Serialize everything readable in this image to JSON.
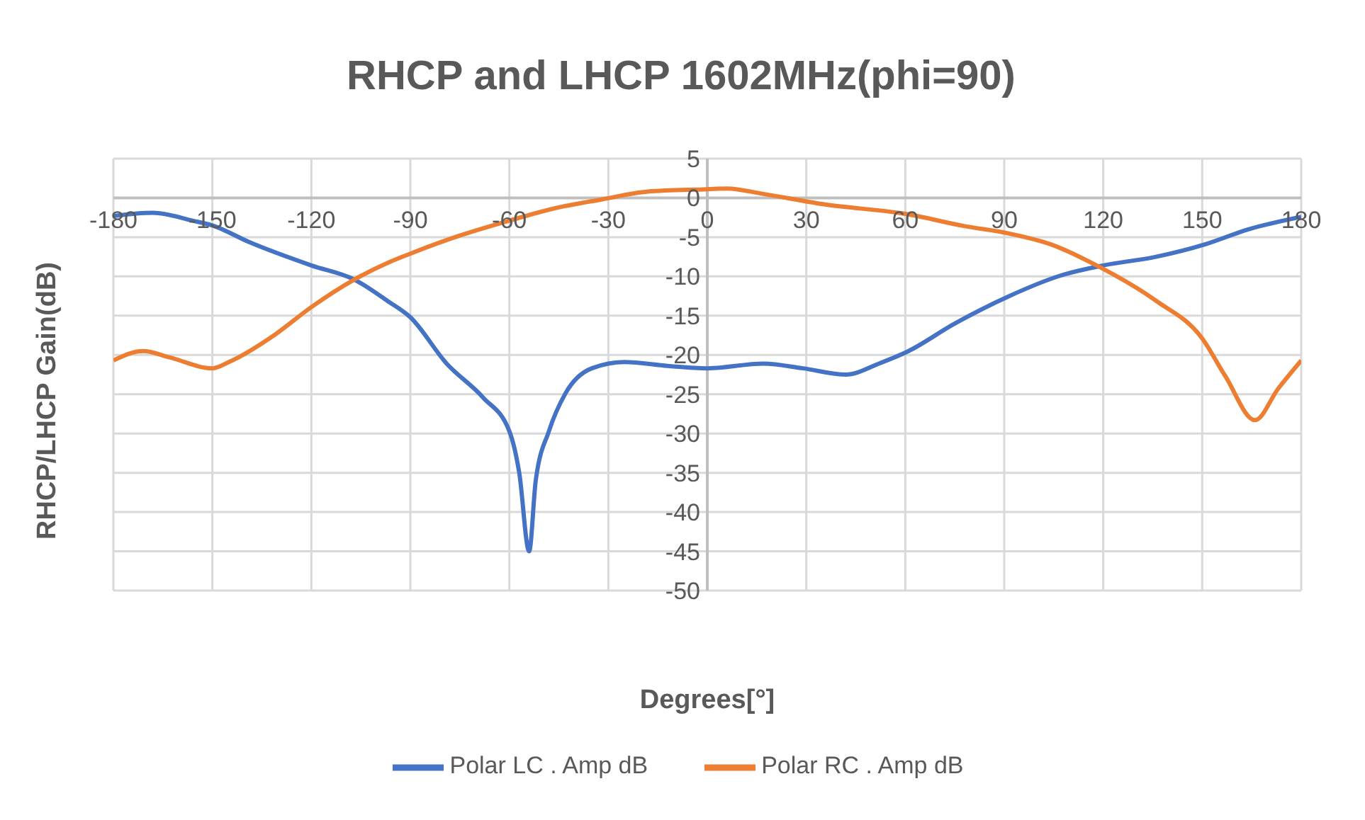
{
  "chart_data": {
    "type": "line",
    "title": "RHCP and LHCP 1602MHz(phi=90)",
    "xlabel": "Degrees[°]",
    "ylabel": "RHCP/LHCP Gain(dB)",
    "xlim": [
      -180,
      180
    ],
    "xticks": [
      -180,
      -150,
      -120,
      -90,
      -60,
      -30,
      0,
      30,
      60,
      90,
      120,
      150,
      180
    ],
    "ylim": [
      -50,
      5
    ],
    "yticks": [
      -50,
      -45,
      -40,
      -35,
      -30,
      -25,
      -20,
      -15,
      -10,
      -5,
      0,
      5
    ],
    "grid": true,
    "legend": "bottom",
    "marker": "none",
    "line_style": "solid",
    "series": [
      {
        "name": "Polar LC . Amp dB",
        "color": "#4472c4",
        "x": [
          -180,
          -168,
          -156,
          -150,
          -139,
          -120,
          -107,
          -97,
          -90,
          -79,
          -68,
          -60,
          -57,
          -54,
          -52,
          -48,
          -43,
          -35,
          -25,
          -12,
          0,
          17,
          29,
          42,
          52,
          61,
          75,
          91,
          107,
          120,
          136,
          151,
          164,
          180
        ],
        "values": [
          -2.3,
          -1.9,
          -2.9,
          -3.5,
          -5.6,
          -8.6,
          -10.4,
          -13.1,
          -15.2,
          -21.1,
          -25.4,
          -29.7,
          -35,
          -45,
          -36,
          -29.7,
          -24.9,
          -21.7,
          -20.9,
          -21.4,
          -21.7,
          -21.1,
          -21.7,
          -22.5,
          -21.1,
          -19.5,
          -16,
          -12.6,
          -9.9,
          -8.6,
          -7.5,
          -5.9,
          -4,
          -2.4
        ]
      },
      {
        "name": "Polar RC . Amp dB",
        "color": "#ed7d31",
        "x": [
          -180,
          -171,
          -163,
          -150,
          -145,
          -131,
          -120,
          -107,
          -97,
          -90,
          -75,
          -60,
          -46,
          -32,
          -18,
          0,
          6,
          17,
          35,
          61,
          78,
          91,
          104,
          118,
          136,
          150,
          157,
          166,
          173,
          180
        ],
        "values": [
          -20.7,
          -19.5,
          -20.3,
          -21.7,
          -20.9,
          -17.4,
          -13.9,
          -10.4,
          -8.3,
          -7.1,
          -4.8,
          -2.9,
          -1.3,
          -0.2,
          0.8,
          1.1,
          1.2,
          0.5,
          -0.8,
          -2.1,
          -3.6,
          -4.5,
          -5.9,
          -8.6,
          -13.1,
          -17.9,
          -22.7,
          -28.3,
          -24.3,
          -20.7
        ]
      }
    ]
  }
}
